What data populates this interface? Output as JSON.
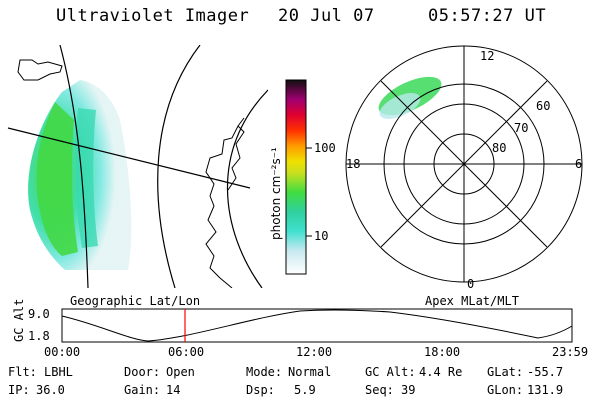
{
  "header": {
    "title": "Ultraviolet Imager",
    "date": "20 Jul 07",
    "time": "05:57:27 UT"
  },
  "colorbar": {
    "unit_label": "photon cm⁻²s⁻¹",
    "ticks": [
      "100",
      "10"
    ]
  },
  "polar_plot": {
    "mlt_labels": {
      "top": "12",
      "left": "18",
      "right": "6",
      "bottom": "0"
    },
    "lat_labels": [
      "60",
      "70",
      "80"
    ]
  },
  "timeline": {
    "left_title": "Geographic Lat/Lon",
    "right_title": "Apex MLat/MLT",
    "y_axis_label": "GC Alt",
    "y_ticks": [
      "9.0",
      "1.8"
    ],
    "x_ticks": [
      "00:00",
      "06:00",
      "12:00",
      "18:00",
      "23:59"
    ]
  },
  "status": {
    "rows": [
      [
        {
          "label": "Flt:",
          "value": "LBHL"
        },
        {
          "label": "Door:",
          "value": "Open"
        },
        {
          "label": "Mode:",
          "value": "Normal"
        },
        {
          "label": "GC Alt:",
          "value": "4.4 Re"
        },
        {
          "label": "GLat:",
          "value": "-55.7"
        }
      ],
      [
        {
          "label": "IP:",
          "value": "36.0"
        },
        {
          "label": "Gain:",
          "value": "14"
        },
        {
          "label": "Dsp:",
          "value": "5.9"
        },
        {
          "label": "Seq:",
          "value": "39"
        },
        {
          "label": "GLon:",
          "value": "131.9"
        }
      ]
    ]
  },
  "colors": {
    "marker": "#ff0000",
    "aurora_green": "#3ddc3d",
    "aurora_cyan": "#38e0c8"
  }
}
